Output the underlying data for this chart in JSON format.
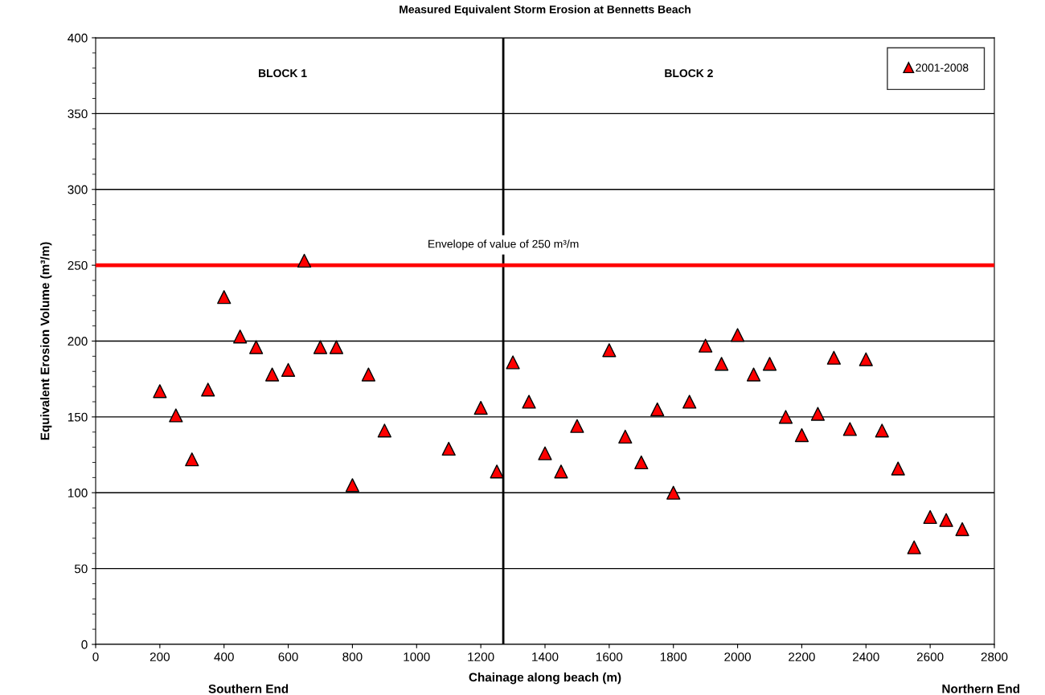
{
  "chart_data": {
    "type": "scatter",
    "title": "Measured Equivalent Storm Erosion at Bennetts Beach",
    "xlabel": "Chainage along beach (m)",
    "ylabel": "Equivalent Erosion Volume (m³/m)",
    "x": [
      200,
      250,
      300,
      350,
      400,
      450,
      500,
      550,
      600,
      650,
      700,
      750,
      800,
      850,
      900,
      1100,
      1200,
      1250,
      1300,
      1350,
      1400,
      1450,
      1500,
      1600,
      1650,
      1700,
      1750,
      1800,
      1850,
      1900,
      1950,
      2000,
      2050,
      2100,
      2150,
      2200,
      2250,
      2300,
      2350,
      2400,
      2450,
      2500,
      2550,
      2600,
      2650,
      2700
    ],
    "series": [
      {
        "name": "2001-2008",
        "color": "#ff0000",
        "values": [
          167,
          151,
          122,
          168,
          229,
          203,
          196,
          178,
          181,
          253,
          196,
          196,
          105,
          178,
          141,
          129,
          156,
          114,
          186,
          160,
          126,
          114,
          144,
          194,
          137,
          120,
          155,
          100,
          160,
          197,
          185,
          204,
          178,
          185,
          150,
          138,
          152,
          189,
          142,
          188,
          141,
          116,
          64,
          84,
          82,
          76
        ]
      }
    ],
    "marker": "triangle",
    "xlim": [
      0,
      2800
    ],
    "xticks": [
      0,
      200,
      400,
      600,
      800,
      1000,
      1200,
      1400,
      1600,
      1800,
      2000,
      2200,
      2400,
      2600,
      2800
    ],
    "ylim": [
      0,
      400
    ],
    "yticks": [
      0,
      50,
      100,
      150,
      200,
      250,
      300,
      350,
      400
    ],
    "grid": "y",
    "legend": "top right",
    "ref_lines": [
      {
        "axis": "y",
        "value": 250,
        "label": "Envelope of value of 250 m³/m",
        "color": "#ff0000"
      },
      {
        "axis": "x",
        "value": 1270,
        "color": "#000000"
      }
    ],
    "annotations": [
      "BLOCK 1",
      "BLOCK 2",
      "Southern End",
      "Northern End"
    ]
  }
}
